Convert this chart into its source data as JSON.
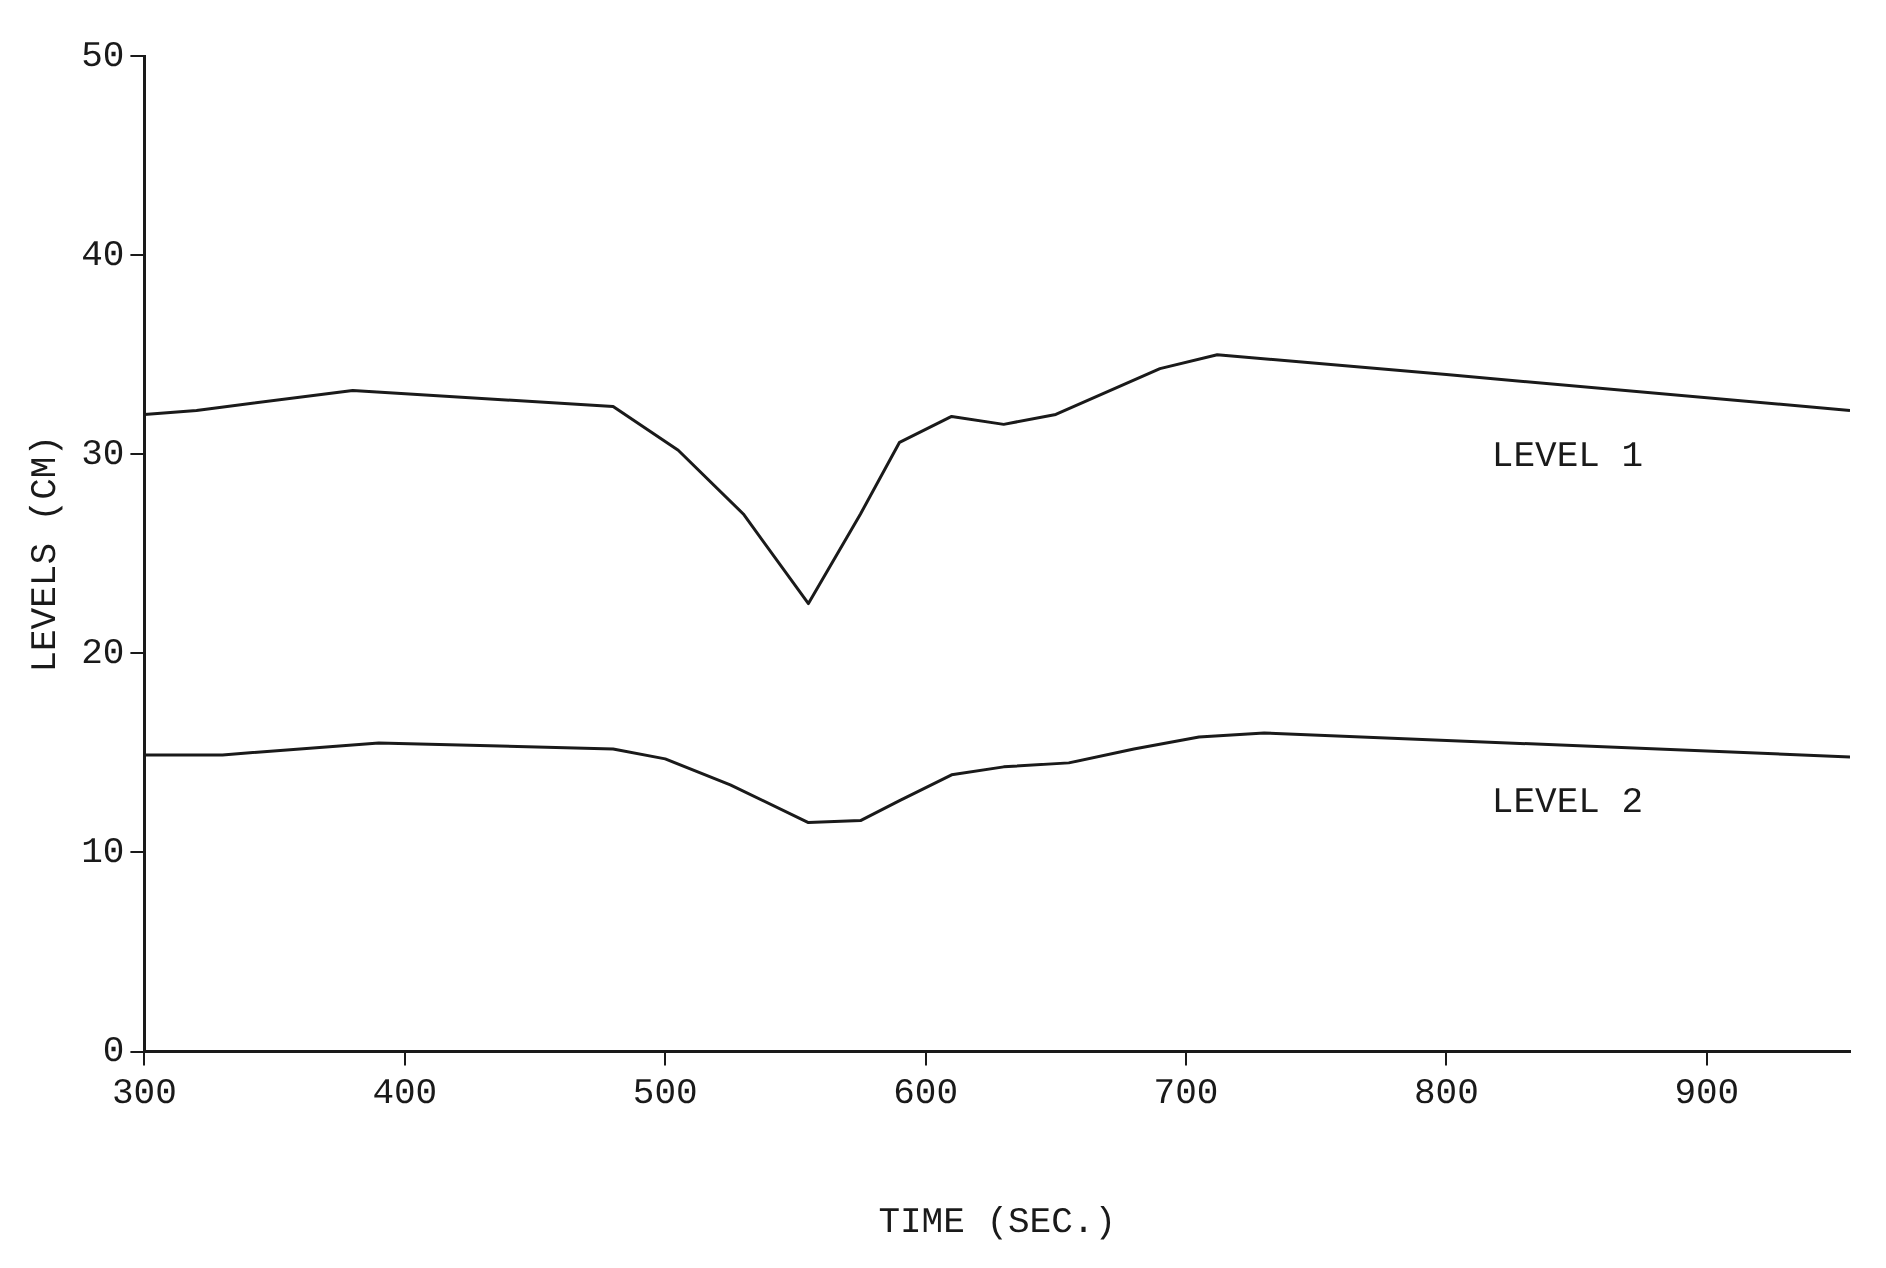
{
  "chart_data": {
    "type": "line",
    "xlabel": "TIME (SEC.)",
    "ylabel": "LEVELS (CM)",
    "xlim": [
      300,
      955
    ],
    "xticks": [
      300,
      400,
      500,
      600,
      700,
      800,
      900
    ],
    "ylim": [
      0,
      50
    ],
    "yticks": [
      0,
      10,
      20,
      30,
      40,
      50
    ],
    "grid": false,
    "legend": false,
    "marker": "none",
    "line_style": "solid",
    "series": [
      {
        "name": "LEVEL 1",
        "color": "#1a1a1a",
        "x": [
          300,
          320,
          380,
          480,
          505,
          530,
          555,
          575,
          590,
          610,
          630,
          650,
          690,
          712,
          800,
          955
        ],
        "values": [
          32.0,
          32.2,
          33.2,
          32.4,
          30.2,
          27.0,
          22.5,
          27.0,
          30.6,
          31.9,
          31.5,
          32.0,
          34.3,
          35.0,
          34.0,
          32.2
        ]
      },
      {
        "name": "LEVEL 2",
        "color": "#1a1a1a",
        "x": [
          300,
          330,
          390,
          480,
          500,
          525,
          555,
          575,
          590,
          610,
          630,
          655,
          680,
          705,
          730,
          955
        ],
        "values": [
          14.9,
          14.9,
          15.5,
          15.2,
          14.7,
          13.4,
          11.5,
          11.6,
          12.6,
          13.9,
          14.3,
          14.5,
          15.2,
          15.8,
          16.0,
          14.8
        ]
      }
    ]
  }
}
